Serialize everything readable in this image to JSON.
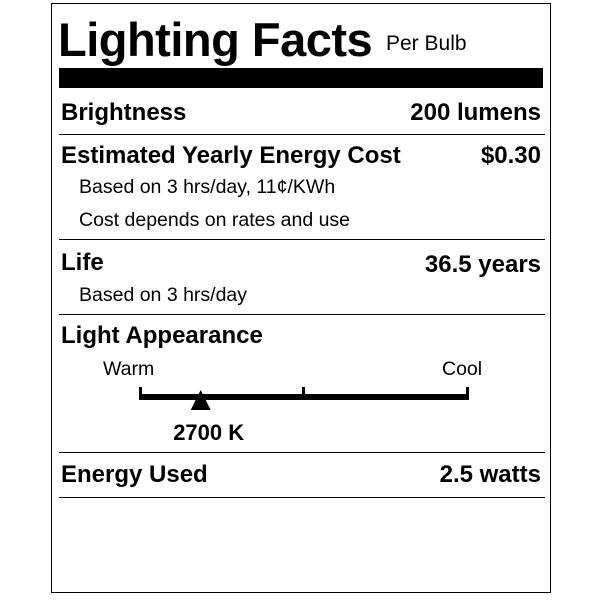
{
  "title": "Lighting Facts",
  "subtitle": "Per Bulb",
  "brightness": {
    "label": "Brightness",
    "value": "200 lumens"
  },
  "energy_cost": {
    "label": "Estimated Yearly Energy Cost",
    "value": "$0.30",
    "note1": "Based on 3 hrs/day, 11¢/KWh",
    "note2": "Cost depends on rates and use"
  },
  "life": {
    "label": "Life",
    "value": "36.5 years",
    "note": "Based on 3 hrs/day"
  },
  "light_appearance": {
    "label": "Light Appearance",
    "warm_label": "Warm",
    "cool_label": "Cool",
    "value": "2700 K",
    "marker_fraction": 0.185
  },
  "energy_used": {
    "label": "Energy Used",
    "value": "2.5 watts"
  }
}
